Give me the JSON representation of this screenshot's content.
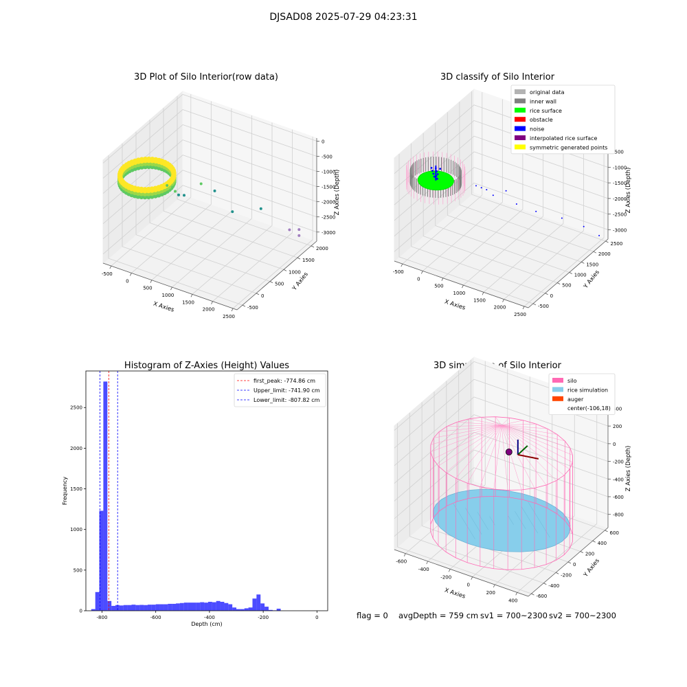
{
  "figure": {
    "suptitle": "DJSAD08 2025-07-29 04:23:31",
    "footer": {
      "flag": "flag = 0",
      "avg_depth": "avgDepth = 759 cm",
      "sv1": "sv1 = 700~2300",
      "sv2": "sv2 = 700~2300"
    }
  },
  "chart_data": [
    {
      "type": "scatter3d",
      "title": "3D Plot of Silo Interior(row data)",
      "xlabel": "X Axies",
      "ylabel": "Y Axies",
      "zlabel": "Z Axies (Depth)",
      "x_ticks": [
        -500,
        0,
        500,
        1000,
        1500,
        2000,
        2500
      ],
      "y_ticks": [
        -500,
        0,
        500,
        1000,
        1500,
        2000
      ],
      "z_ticks": [
        0,
        -500,
        -1000,
        -1500,
        -2000,
        -2500,
        -3000
      ],
      "xlim": [
        -700,
        2600
      ],
      "ylim": [
        -700,
        2200
      ],
      "zlim": [
        -3300,
        100
      ],
      "colormap": [
        "#440154",
        "#21918c",
        "#5ec962",
        "#fde725"
      ],
      "silo_ring": {
        "center": [
          -106,
          18
        ],
        "radius": 550,
        "z_top": -650,
        "z_bottom": -900
      },
      "outliers": [
        {
          "x": 200,
          "y": 300,
          "z": -1100
        },
        {
          "x": 300,
          "y": 350,
          "z": -1150
        },
        {
          "x": 400,
          "y": 300,
          "z": -1200
        },
        {
          "x": 350,
          "y": 500,
          "z": -1500
        },
        {
          "x": 450,
          "y": 550,
          "z": -1500
        },
        {
          "x": 700,
          "y": 800,
          "z": -1200
        },
        {
          "x": 900,
          "y": 1000,
          "z": -1500
        },
        {
          "x": 1200,
          "y": 1200,
          "z": -2200
        },
        {
          "x": 1700,
          "y": 1500,
          "z": -2100
        },
        {
          "x": 2200,
          "y": 1800,
          "z": -2800
        },
        {
          "x": 2300,
          "y": 2000,
          "z": -3100
        },
        {
          "x": 2300,
          "y": 2000,
          "z": -2900
        }
      ]
    },
    {
      "type": "scatter3d",
      "title": "3D classify of Silo Interior",
      "xlabel": "X Axies",
      "ylabel": "Y Axies",
      "zlabel": "Z Axies (Depth)",
      "x_ticks": [
        -500,
        0,
        500,
        1000,
        1500,
        2000,
        2500
      ],
      "y_ticks": [
        -500,
        0,
        500,
        1000,
        1500,
        2000,
        2500
      ],
      "z_ticks": [
        -500,
        -1000,
        -1500,
        -2000,
        -2500,
        -3000
      ],
      "xlim": [
        -700,
        2600
      ],
      "ylim": [
        -700,
        2600
      ],
      "zlim": [
        -3300,
        0
      ],
      "legend_position": "top-right",
      "legend": [
        {
          "label": "original data",
          "color": "#b3b3b3"
        },
        {
          "label": "inner wall",
          "color": "#808080"
        },
        {
          "label": "rice surface",
          "color": "#00ff00"
        },
        {
          "label": "obstacle",
          "color": "#ff0000"
        },
        {
          "label": "noise",
          "color": "#0000ff"
        },
        {
          "label": "interpolated rice surface",
          "color": "#800080"
        },
        {
          "label": "symmetric generated points",
          "color": "#ffff00"
        }
      ],
      "noise_points": [
        {
          "x": 600,
          "y": 500,
          "z": -1100
        },
        {
          "x": 700,
          "y": 550,
          "z": -1150
        },
        {
          "x": 800,
          "y": 600,
          "z": -1200
        },
        {
          "x": 900,
          "y": 700,
          "z": -1400
        },
        {
          "x": 1100,
          "y": 900,
          "z": -1300
        },
        {
          "x": 1300,
          "y": 1000,
          "z": -1700
        },
        {
          "x": 1600,
          "y": 1300,
          "z": -2000
        },
        {
          "x": 2000,
          "y": 1700,
          "z": -2300
        },
        {
          "x": 2300,
          "y": 2100,
          "z": -2700
        },
        {
          "x": 2500,
          "y": 2400,
          "z": -3100
        }
      ]
    },
    {
      "type": "histogram",
      "title": "Histogram of Z-Axies (Height) Values",
      "xlabel": "Depth (cm)",
      "ylabel": "Frequency",
      "xlim": [
        -860,
        40
      ],
      "ylim": [
        0,
        2950
      ],
      "x_ticks": [
        -800,
        -600,
        -400,
        -200,
        0
      ],
      "y_ticks": [
        0,
        500,
        1000,
        1500,
        2000,
        2500
      ],
      "bar_color": "#0000ff",
      "bin_start": -840,
      "bin_width": 15,
      "counts": [
        20,
        230,
        1230,
        2820,
        120,
        60,
        70,
        65,
        70,
        70,
        75,
        70,
        72,
        70,
        75,
        75,
        80,
        80,
        80,
        85,
        85,
        90,
        95,
        100,
        100,
        100,
        100,
        105,
        100,
        110,
        105,
        120,
        110,
        95,
        80,
        40,
        20,
        20,
        30,
        40,
        150,
        200,
        90,
        50,
        10,
        5,
        25
      ],
      "vlines": [
        {
          "label": "first_peak: -774.86 cm",
          "x": -774.86,
          "color": "#ff0000"
        },
        {
          "label": "Upper_limit: -741.90 cm",
          "x": -741.9,
          "color": "#0000ff"
        },
        {
          "label": "Lower_limit: -807.82 cm",
          "x": -807.82,
          "color": "#0000ff"
        }
      ],
      "legend_position": "top-right"
    },
    {
      "type": "surface3d",
      "title": "3D simulation of Silo Interior",
      "xlabel": "X Axies",
      "ylabel": "Y Axies",
      "zlabel": "Z Axies (Depth)",
      "x_ticks": [
        -600,
        -400,
        -200,
        0,
        200,
        400
      ],
      "y_ticks": [
        -600,
        -400,
        -200,
        0,
        200,
        400,
        600
      ],
      "z_ticks": [
        400,
        200,
        0,
        -200,
        -400,
        -600,
        -800
      ],
      "xlim": [
        -700,
        500
      ],
      "ylim": [
        -650,
        650
      ],
      "zlim": [
        -950,
        450
      ],
      "legend_position": "top-right",
      "legend": [
        {
          "label": "silo",
          "color": "#ff69b4"
        },
        {
          "label": "rice simulation",
          "color": "#87ceeb"
        },
        {
          "label": "auger",
          "color": "#ff4500"
        },
        {
          "label": "center(-106,18)",
          "color": ""
        }
      ],
      "silo": {
        "center": [
          -106,
          18
        ],
        "radius": 560,
        "z_top": 0,
        "z_bottom": -900
      },
      "rice_surface_depth": -759
    }
  ]
}
